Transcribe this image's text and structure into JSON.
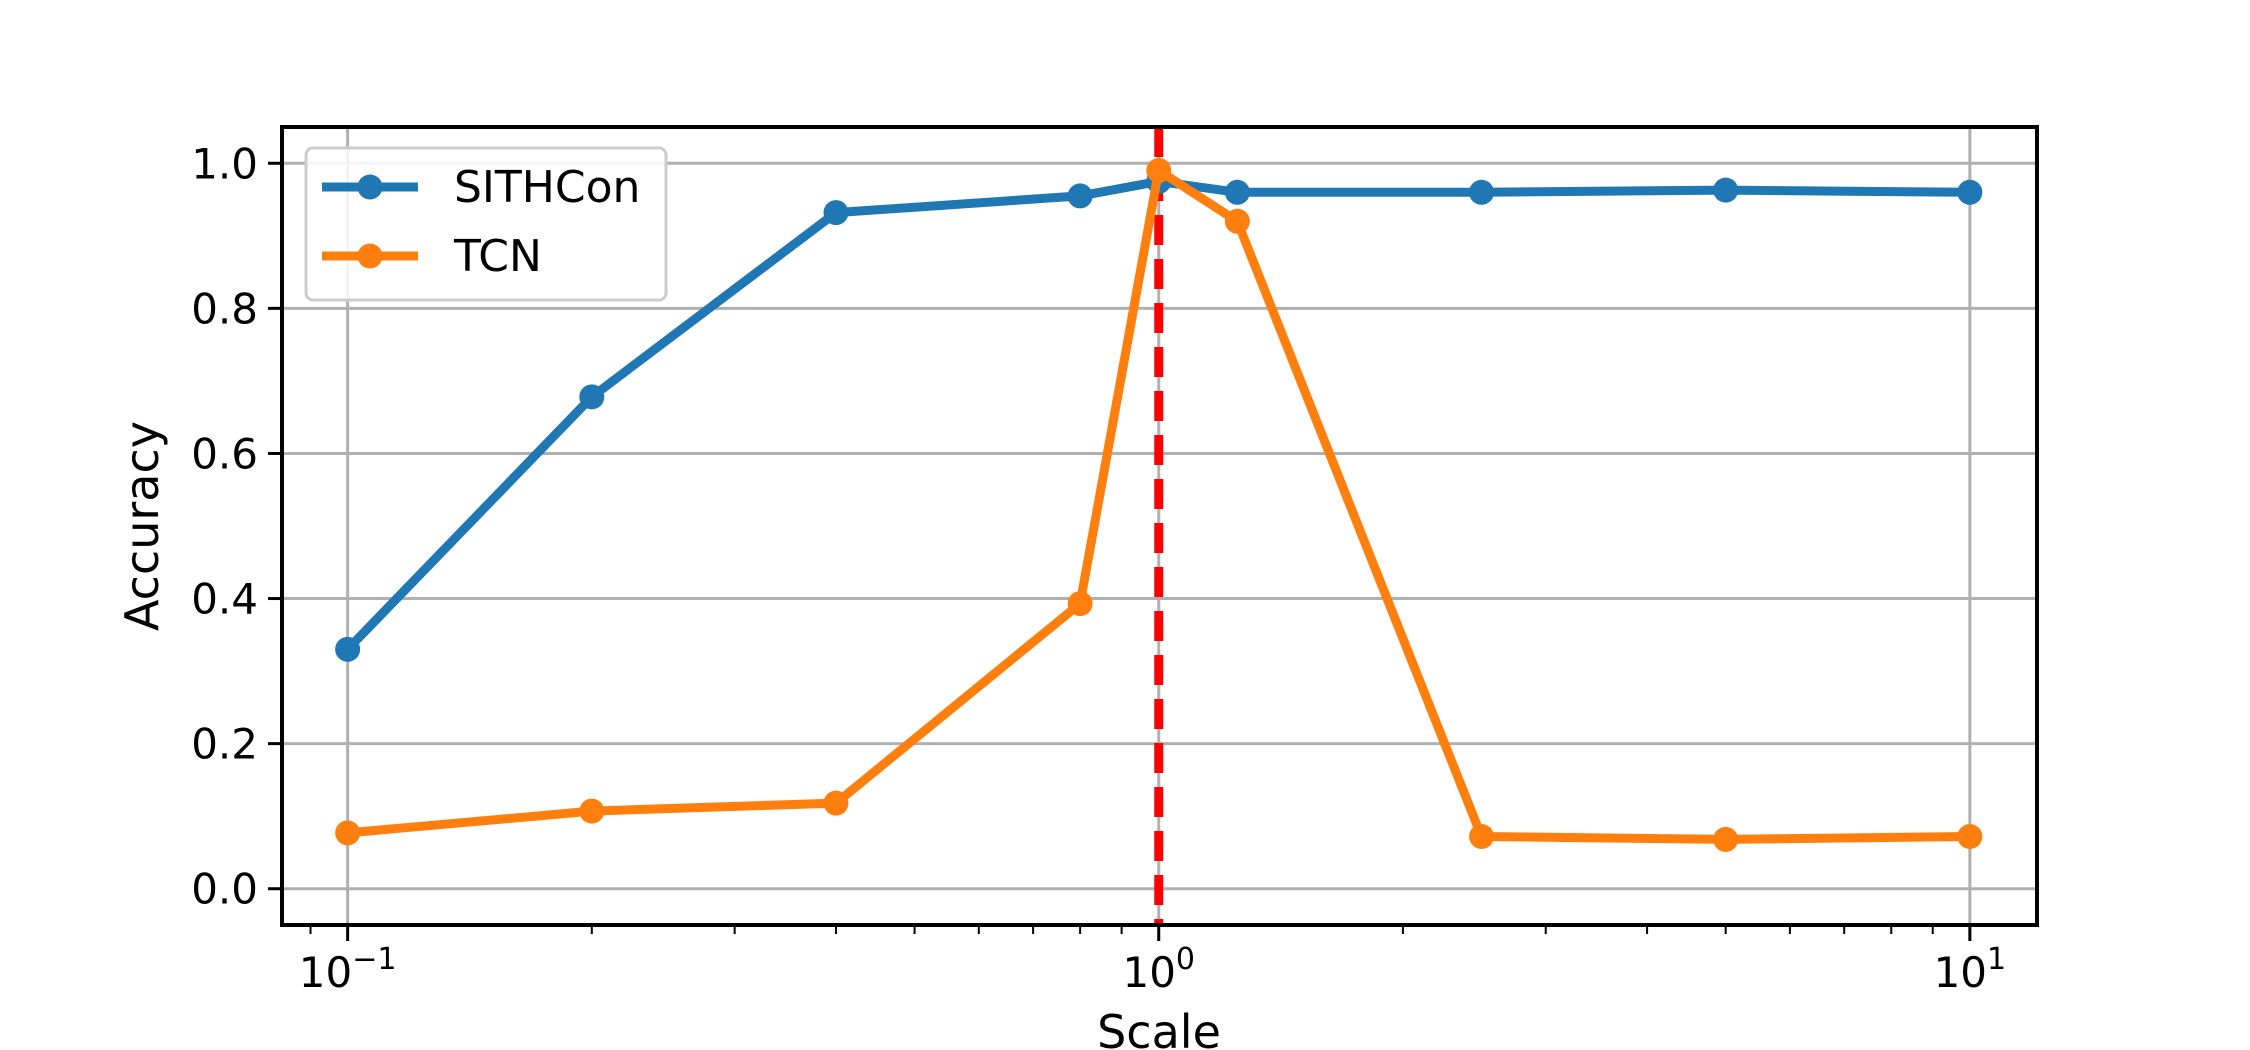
{
  "chart_data": {
    "type": "line",
    "title": "",
    "xlabel": "Scale",
    "ylabel": "Accuracy",
    "xscale": "log",
    "xlim": [
      0.083,
      12.1
    ],
    "ylim": [
      -0.05,
      1.05
    ],
    "grid": true,
    "legend_position": "top-left",
    "x_ticks": [
      {
        "value": 0.1,
        "base": "10",
        "exp": "−1"
      },
      {
        "value": 1,
        "base": "10",
        "exp": "0"
      },
      {
        "value": 10,
        "base": "10",
        "exp": "1"
      }
    ],
    "y_ticks": [
      "0.0",
      "0.2",
      "0.4",
      "0.6",
      "0.8",
      "1.0"
    ],
    "x": [
      0.1,
      0.2,
      0.4,
      0.8,
      1.0,
      1.25,
      2.5,
      5.0,
      10.0
    ],
    "series": [
      {
        "name": "SITHCon",
        "color": "#1f77b4",
        "values": [
          0.33,
          0.678,
          0.932,
          0.955,
          0.975,
          0.96,
          0.96,
          0.963,
          0.96
        ]
      },
      {
        "name": "TCN",
        "color": "#ff7f0e",
        "values": [
          0.077,
          0.107,
          0.118,
          0.393,
          0.99,
          0.92,
          0.072,
          0.068,
          0.072
        ]
      }
    ],
    "reference_line": {
      "x": 1.0,
      "color": "#ff0000",
      "style": "dashed"
    }
  }
}
